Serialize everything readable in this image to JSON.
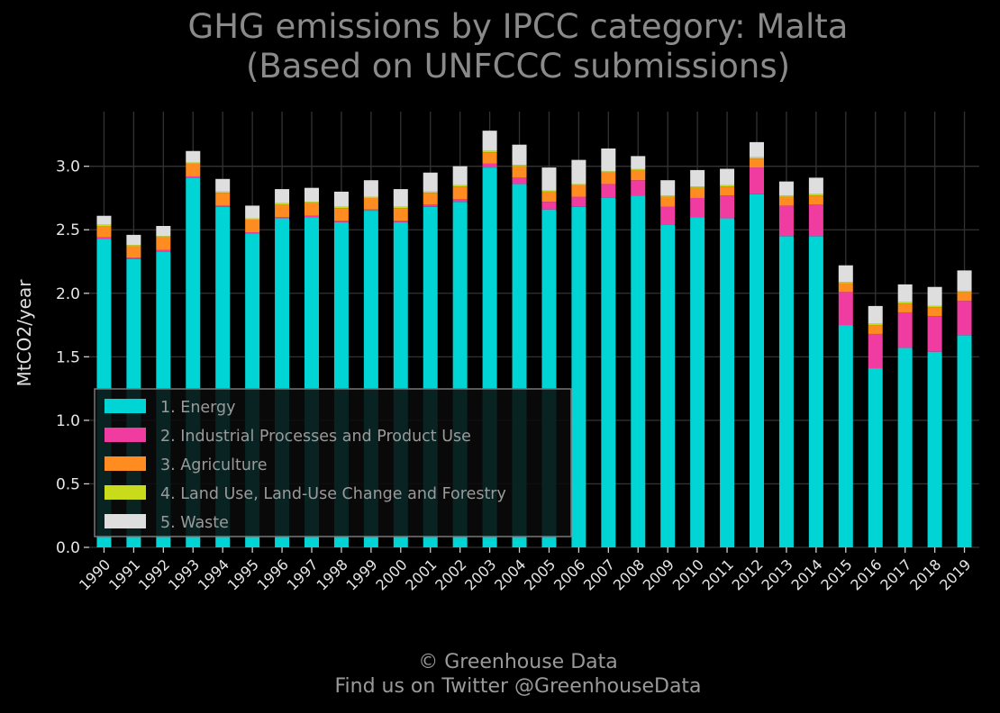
{
  "chart_data": {
    "type": "bar",
    "stacked": true,
    "title": "GHG emissions by IPCC category: Malta",
    "subtitle": "(Based on UNFCCC submissions)",
    "xlabel": "",
    "ylabel": "MtCO2/year",
    "ylim": [
      0,
      3.43
    ],
    "yticks": [
      "0.0",
      "0.5",
      "1.0",
      "1.5",
      "2.0",
      "2.5",
      "3.0"
    ],
    "grid": true,
    "legend_position": "lower-left",
    "categories": [
      "1990",
      "1991",
      "1992",
      "1993",
      "1994",
      "1995",
      "1996",
      "1997",
      "1998",
      "1999",
      "2000",
      "2001",
      "2002",
      "2003",
      "2004",
      "2005",
      "2006",
      "2007",
      "2008",
      "2009",
      "2010",
      "2011",
      "2012",
      "2013",
      "2014",
      "2015",
      "2016",
      "2017",
      "2018",
      "2019"
    ],
    "series": [
      {
        "name": "1. Energy",
        "color": "#00d4d4",
        "values": [
          2.43,
          2.27,
          2.33,
          2.91,
          2.68,
          2.47,
          2.59,
          2.6,
          2.56,
          2.65,
          2.56,
          2.68,
          2.72,
          2.99,
          2.86,
          2.66,
          2.68,
          2.75,
          2.77,
          2.54,
          2.6,
          2.59,
          2.78,
          2.45,
          2.45,
          1.75,
          1.41,
          1.57,
          1.54,
          1.67
        ]
      },
      {
        "name": "2. Industrial Processes and Product Use",
        "color": "#f03ca0",
        "values": [
          0.01,
          0.01,
          0.01,
          0.01,
          0.01,
          0.01,
          0.01,
          0.01,
          0.01,
          0.01,
          0.01,
          0.02,
          0.02,
          0.03,
          0.05,
          0.06,
          0.08,
          0.11,
          0.12,
          0.14,
          0.15,
          0.18,
          0.21,
          0.24,
          0.25,
          0.26,
          0.27,
          0.28,
          0.28,
          0.27
        ]
      },
      {
        "name": "3. Agriculture",
        "color": "#ff8c20",
        "values": [
          0.09,
          0.09,
          0.1,
          0.1,
          0.1,
          0.1,
          0.1,
          0.1,
          0.1,
          0.09,
          0.1,
          0.09,
          0.1,
          0.09,
          0.09,
          0.08,
          0.09,
          0.09,
          0.08,
          0.08,
          0.08,
          0.07,
          0.07,
          0.07,
          0.07,
          0.07,
          0.07,
          0.07,
          0.07,
          0.07
        ]
      },
      {
        "name": "4. Land Use, Land-Use Change and Forestry",
        "color": "#c8dc1c",
        "values": [
          0.01,
          0.01,
          0.01,
          0.01,
          0.01,
          0.01,
          0.01,
          0.01,
          0.01,
          0.01,
          0.01,
          0.01,
          0.01,
          0.01,
          0.01,
          0.01,
          0.01,
          0.01,
          0.01,
          0.01,
          0.01,
          0.01,
          0.01,
          0.01,
          0.01,
          0.01,
          0.01,
          0.01,
          0.01,
          0.01
        ]
      },
      {
        "name": "5. Waste",
        "color": "#dedede",
        "values": [
          0.07,
          0.08,
          0.08,
          0.09,
          0.1,
          0.1,
          0.11,
          0.11,
          0.12,
          0.13,
          0.14,
          0.15,
          0.15,
          0.16,
          0.16,
          0.18,
          0.19,
          0.18,
          0.1,
          0.12,
          0.13,
          0.13,
          0.12,
          0.11,
          0.13,
          0.13,
          0.14,
          0.14,
          0.15,
          0.16
        ]
      }
    ]
  },
  "footer": {
    "line1": "© Greenhouse Data",
    "line2": "Find us on Twitter @GreenhouseData"
  }
}
